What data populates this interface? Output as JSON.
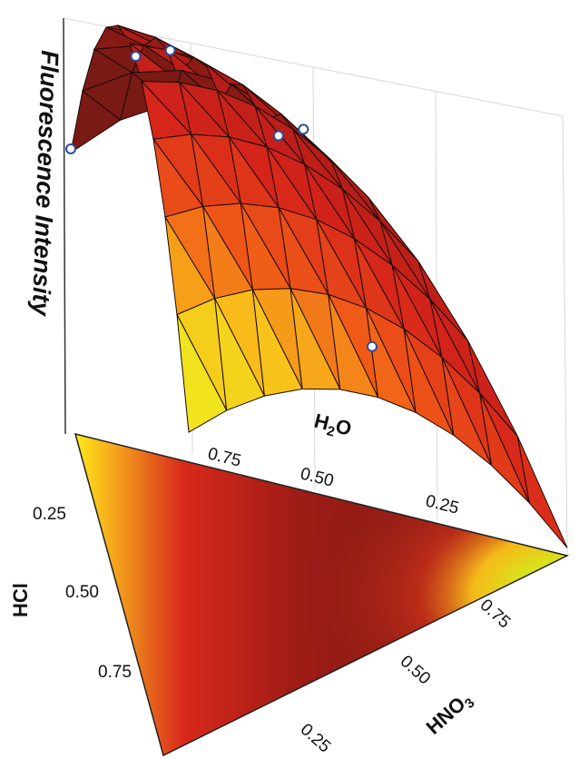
{
  "chart_data": {
    "type": "surface-3d-mixture",
    "title": "",
    "z_axis": {
      "label": "Fluorescence Intensity"
    },
    "components": [
      {
        "key": "h2o",
        "label_base": "H",
        "label_sub": "2",
        "label_tail": "O",
        "ticks": [
          "0.75",
          "0.50",
          "0.25"
        ]
      },
      {
        "key": "hcl",
        "label": "HCl",
        "ticks": [
          "0.25",
          "0.50",
          "0.75"
        ]
      },
      {
        "key": "hno3",
        "label_base": "HNO",
        "label_sub": "3",
        "ticks": [
          "0.25",
          "0.50",
          "0.75"
        ]
      }
    ],
    "grid_divisions": 10,
    "surface_colormap": [
      "#7a1a14",
      "#c0201d",
      "#e63a1a",
      "#f7c21a",
      "#e8e81a",
      "#2e8b2e"
    ],
    "design_points": [
      {
        "hcl": 0.0,
        "h2o": 1.0,
        "hno3": 0.0,
        "z": 0.96
      },
      {
        "hcl": 0.55,
        "h2o": 0.45,
        "hno3": 0.0,
        "z": 0.92
      },
      {
        "hcl": 0.17,
        "h2o": 0.67,
        "hno3": 0.17,
        "z": 0.95
      },
      {
        "hcl": 0.33,
        "h2o": 0.33,
        "hno3": 0.33,
        "z": 0.9
      },
      {
        "hcl": 0.12,
        "h2o": 0.44,
        "hno3": 0.44,
        "z": 0.93
      },
      {
        "hcl": 0.45,
        "h2o": 0.05,
        "hno3": 0.5,
        "z": 0.75
      }
    ],
    "point_style": {
      "fill": "#ffffff",
      "stroke": "#2a4d9c"
    },
    "projection": "filled-contour-floor"
  }
}
